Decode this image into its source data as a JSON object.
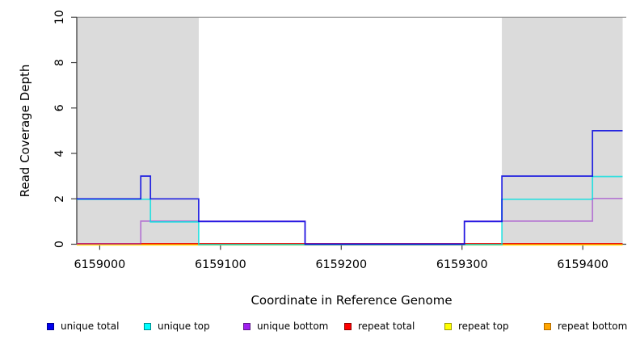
{
  "figure": {
    "background": "#FFFFFF",
    "band_color": "#DBDBDB",
    "axis_color": "#404040",
    "top_border_color": "#8A8A8A"
  },
  "chart_data": {
    "type": "line",
    "subtype": "step-coverage",
    "title": "",
    "xlabel": "Coordinate in Reference Genome",
    "ylabel": "Read Coverage Depth",
    "xlim": [
      6158981,
      6159436
    ],
    "ylim": [
      0,
      10
    ],
    "x_ticks": [
      6159000,
      6159100,
      6159200,
      6159300,
      6159400
    ],
    "y_ticks": [
      0,
      2,
      4,
      6,
      8,
      10
    ],
    "grid": false,
    "legend_position": "bottom",
    "shaded_regions": [
      {
        "name": "repeat-region-left",
        "start": 6158981,
        "end": 6159082
      },
      {
        "name": "repeat-region-right",
        "start": 6159333,
        "end": 6159433
      }
    ],
    "series": [
      {
        "name": "unique total",
        "color": "#0000E0",
        "legend_color": "#0000EE",
        "legend_border": "#000090",
        "opacity": 0.85,
        "y_offset": 0,
        "steps": [
          [
            6158981,
            2
          ],
          [
            6159034,
            3
          ],
          [
            6159042,
            2
          ],
          [
            6159082,
            1
          ],
          [
            6159170,
            0
          ],
          [
            6159302,
            1
          ],
          [
            6159333,
            3
          ],
          [
            6159408,
            5
          ],
          [
            6159433,
            5
          ]
        ]
      },
      {
        "name": "unique top",
        "color": "#00E0E0",
        "legend_color": "#00FFFF",
        "legend_border": "#008B8B",
        "opacity": 0.8,
        "y_offset": 0.5,
        "steps": [
          [
            6158981,
            2
          ],
          [
            6159042,
            1
          ],
          [
            6159082,
            0
          ],
          [
            6159333,
            2
          ],
          [
            6159408,
            3
          ],
          [
            6159433,
            3
          ]
        ]
      },
      {
        "name": "unique bottom",
        "color": "#9932CC",
        "legend_color": "#A020F0",
        "legend_border": "#5E1A86",
        "opacity": 0.6,
        "y_offset": -0.5,
        "steps": [
          [
            6158981,
            0
          ],
          [
            6159034,
            1
          ],
          [
            6159170,
            0
          ],
          [
            6159302,
            1
          ],
          [
            6159408,
            2
          ],
          [
            6159433,
            2
          ]
        ]
      },
      {
        "name": "repeat total",
        "color": "#EE0000",
        "legend_color": "#FF0000",
        "legend_border": "#8B0000",
        "opacity": 0.9,
        "y_offset": -0.7,
        "steps": [
          [
            6158981,
            0
          ],
          [
            6159433,
            0
          ]
        ]
      },
      {
        "name": "repeat top",
        "color": "#FFFF00",
        "legend_color": "#FFFF00",
        "legend_border": "#99990A",
        "opacity": 0.9,
        "y_offset": 0.4,
        "steps": [
          [
            6158981,
            0
          ],
          [
            6159433,
            0
          ]
        ]
      },
      {
        "name": "repeat bottom",
        "color": "#FFA500",
        "legend_color": "#FFA500",
        "legend_border": "#B36B00",
        "opacity": 1,
        "y_offset": 0.8,
        "steps": [
          [
            6158981,
            0
          ],
          [
            6159433,
            0
          ]
        ]
      }
    ]
  }
}
